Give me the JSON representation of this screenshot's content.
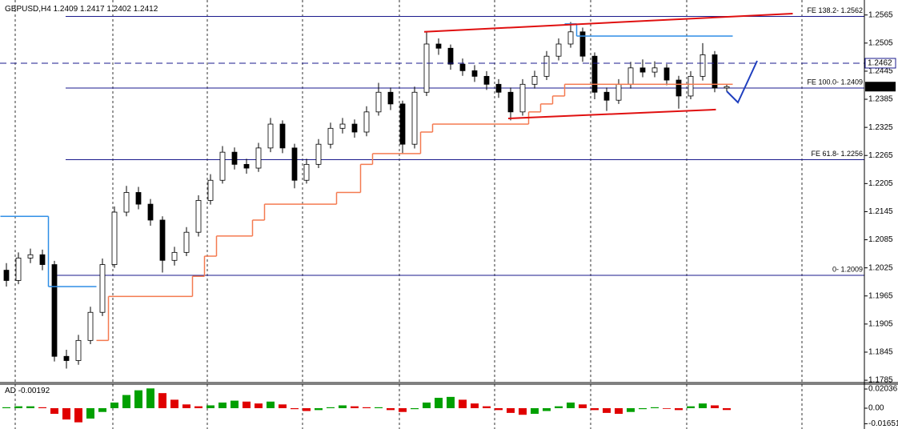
{
  "chart_data": {
    "type": "candlestick",
    "symbol": "GBPUSD,H4",
    "open": [
      1.202,
      1.1998,
      1.2046,
      1.2053,
      1.2032,
      1.1836,
      1.1827,
      1.187,
      1.193,
      1.2032,
      1.2144,
      1.2186,
      1.2161,
      1.2127,
      1.2041,
      1.2058,
      1.2101,
      1.2169,
      1.2212,
      1.2272,
      1.2246,
      1.2238,
      1.2281,
      1.2332,
      1.2281,
      1.2212,
      1.2246,
      1.2289,
      1.2323,
      1.2332,
      1.2315,
      1.2358,
      1.24,
      1.2375,
      1.2289,
      1.24,
      1.2503,
      1.2494,
      1.246,
      1.2446,
      1.2434,
      1.2417,
      1.24,
      1.2358,
      1.2417,
      1.2434,
      1.2477,
      1.2503,
      1.2529,
      1.2477,
      1.24,
      1.2383,
      1.2417,
      1.2452,
      1.2443,
      1.2452,
      1.2426,
      1.2392,
      1.2434,
      1.248,
      1.2409
    ],
    "high": [
      1.2035,
      1.2058,
      1.2066,
      1.2064,
      1.204,
      1.185,
      1.1882,
      1.1942,
      1.2045,
      1.2156,
      1.22,
      1.2198,
      1.2172,
      1.2135,
      1.207,
      1.2112,
      1.218,
      1.2225,
      1.2285,
      1.2282,
      1.2258,
      1.2292,
      1.2345,
      1.234,
      1.229,
      1.2258,
      1.23,
      1.2335,
      1.2345,
      1.2342,
      1.237,
      1.242,
      1.241,
      1.2382,
      1.2412,
      1.2528,
      1.2515,
      1.2502,
      1.2472,
      1.2458,
      1.2445,
      1.2428,
      1.241,
      1.2428,
      1.2446,
      1.2488,
      1.2515,
      1.255,
      1.2538,
      1.2485,
      1.241,
      1.2428,
      1.2465,
      1.247,
      1.2466,
      1.246,
      1.2435,
      1.2445,
      1.2505,
      1.2488,
      1.2417
    ],
    "low": [
      1.1985,
      1.199,
      1.2035,
      1.202,
      1.1825,
      1.181,
      1.1818,
      1.1862,
      1.1922,
      1.2025,
      1.2135,
      1.215,
      1.2115,
      1.2015,
      1.203,
      1.205,
      1.2092,
      1.216,
      1.2205,
      1.2235,
      1.2226,
      1.223,
      1.2272,
      1.227,
      1.2195,
      1.2205,
      1.2238,
      1.228,
      1.2312,
      1.2303,
      1.2306,
      1.235,
      1.2362,
      1.227,
      1.228,
      1.2392,
      1.248,
      1.2448,
      1.2435,
      1.2422,
      1.2405,
      1.2388,
      1.234,
      1.235,
      1.2408,
      1.2426,
      1.2468,
      1.2495,
      1.2465,
      1.2385,
      1.236,
      1.2375,
      1.2408,
      1.2432,
      1.2432,
      1.2415,
      1.2365,
      1.2385,
      1.2425,
      1.24,
      1.2402
    ],
    "close": [
      1.1998,
      1.2046,
      1.2053,
      1.2032,
      1.1836,
      1.1827,
      1.187,
      1.193,
      1.2032,
      1.2144,
      1.2186,
      1.2161,
      1.2127,
      1.2041,
      1.2058,
      1.2101,
      1.2169,
      1.2212,
      1.2272,
      1.2246,
      1.2238,
      1.2281,
      1.2332,
      1.2281,
      1.2212,
      1.2246,
      1.2289,
      1.2323,
      1.2332,
      1.2315,
      1.2358,
      1.24,
      1.2375,
      1.2289,
      1.24,
      1.2503,
      1.2494,
      1.246,
      1.2446,
      1.2434,
      1.2417,
      1.24,
      1.2358,
      1.2417,
      1.2434,
      1.2477,
      1.2503,
      1.2529,
      1.2477,
      1.24,
      1.2383,
      1.2417,
      1.2452,
      1.2443,
      1.2452,
      1.2426,
      1.2392,
      1.2434,
      1.248,
      1.2409,
      1.2412
    ],
    "up_color": "#ffffff",
    "down_color": "#000000",
    "ylim": [
      1.178,
      1.2597
    ],
    "yticks": [
      1.2565,
      1.2505,
      1.2445,
      1.2385,
      1.2325,
      1.2265,
      1.2205,
      1.2145,
      1.2085,
      1.2025,
      1.1965,
      1.1905,
      1.1845,
      1.1785
    ],
    "overlays": [
      {
        "color": "#f47a50",
        "values": [
          null,
          null,
          null,
          null,
          null,
          null,
          null,
          null,
          1.187,
          1.1964,
          1.1964,
          1.1964,
          1.1964,
          1.1964,
          1.1964,
          1.1964,
          1.2007,
          1.205,
          1.2093,
          1.2093,
          1.2093,
          1.2127,
          1.2161,
          1.2161,
          1.2161,
          1.2161,
          1.2161,
          1.2161,
          1.2186,
          1.2186,
          1.2246,
          1.2269,
          1.2269,
          1.2269,
          1.2269,
          1.2315,
          1.2332,
          1.2332,
          1.2332,
          1.2332,
          1.2332,
          1.2332,
          1.2332,
          1.2332,
          1.2358,
          1.2375,
          1.2392,
          1.2417,
          1.2417,
          1.2417,
          1.2417,
          1.2417,
          1.2417,
          1.2417,
          1.2417,
          1.2417,
          1.2417,
          1.2417,
          1.2417,
          1.2417,
          1.2417
        ]
      },
      {
        "color": "#2e8ee6",
        "values": [
          1.2135,
          1.2135,
          1.2135,
          1.2135,
          1.1985,
          1.1985,
          1.1985,
          1.1985,
          null,
          null,
          null,
          null,
          null,
          null,
          null,
          null,
          null,
          null,
          null,
          null,
          null,
          null,
          null,
          null,
          null,
          null,
          null,
          null,
          null,
          null,
          null,
          null,
          null,
          null,
          null,
          null,
          null,
          null,
          null,
          null,
          null,
          null,
          null,
          null,
          null,
          null,
          null,
          1.2546,
          1.252,
          1.252,
          1.252,
          1.252,
          1.252,
          1.252,
          1.252,
          1.252,
          1.252,
          1.252,
          1.252,
          1.252,
          1.252
        ]
      }
    ],
    "trendlines": [
      {
        "color": "#e01010",
        "x": [
          34.8,
          65.5
        ],
        "y": [
          1.2529,
          1.2568
        ]
      },
      {
        "color": "#e01010",
        "x": [
          41.8,
          59.1
        ],
        "y": [
          1.2344,
          1.2363
        ]
      }
    ],
    "levels": [
      {
        "label": "FE 138.2- 1.2562",
        "value": 1.2562,
        "color": "#1a1a8c"
      },
      {
        "label": "FE 100.0- 1.2409",
        "value": 1.2409,
        "color": "#1a1a8c"
      },
      {
        "label": "FE 61.8- 1.2256",
        "value": 1.2256,
        "color": "#1a1a8c"
      },
      {
        "label": "0- 1.2009",
        "value": 1.2009,
        "color": "#1a1a8c"
      }
    ],
    "markers": [
      {
        "value": 1.2462,
        "style": "dashed",
        "color": "#1a1a8c"
      },
      {
        "value": 1.2412,
        "style": "box",
        "color": "#000000"
      }
    ],
    "indicator": {
      "type": "histogram",
      "name": "AD",
      "values": [
        0.001,
        0.002,
        0.002,
        0.001,
        -0.006,
        -0.012,
        -0.015,
        -0.011,
        -0.004,
        0.006,
        0.014,
        0.019,
        0.021,
        0.016,
        0.009,
        0.004,
        0.002,
        0.003,
        0.006,
        0.008,
        0.007,
        0.005,
        0.007,
        0.004,
        -0.001,
        -0.003,
        -0.002,
        0.001,
        0.003,
        0.002,
        0.001,
        0.001,
        -0.002,
        -0.004,
        -0.001,
        0.006,
        0.011,
        0.012,
        0.009,
        0.005,
        0.002,
        -0.002,
        -0.005,
        -0.007,
        -0.006,
        -0.003,
        0.002,
        0.006,
        0.004,
        -0.002,
        -0.005,
        -0.006,
        -0.004,
        -0.001,
        0.001,
        0.0,
        -0.002,
        0.002,
        0.005,
        0.003,
        -0.00192
      ],
      "ylim": [
        -0.0221,
        0.0255
      ],
      "yticks": [
        0.02036,
        {
          "value": 0,
          "label": "0.00"
        },
        -0.01651
      ],
      "up_color": "#00a000",
      "down_color": "#e00000"
    }
  }
}
